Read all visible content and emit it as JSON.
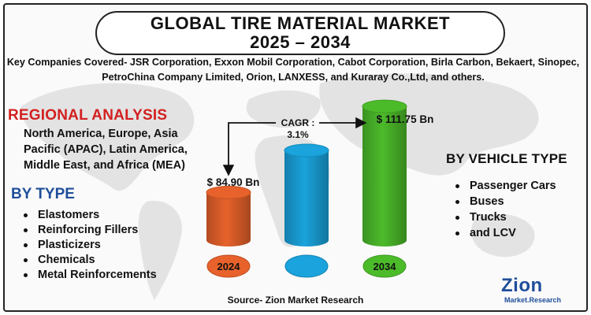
{
  "title": {
    "line1": "GLOBAL TIRE MATERIAL MARKET",
    "line2": "2025 – 2034"
  },
  "companies": {
    "text": "Key Companies Covered- JSR Corporation, Exxon Mobil Corporation, Cabot Corporation, Birla Carbon, Bekaert, Sinopec, PetroChina Company Limited, Orion, LANXESS, and Kuraray Co.,Ltd, and others."
  },
  "regional": {
    "heading": "REGIONAL ANALYSIS",
    "text": "North America, Europe, Asia Pacific (APAC), Latin America, Middle East, and Africa (MEA)"
  },
  "by_type": {
    "heading": "BY TYPE",
    "items": [
      "Elastomers",
      "Reinforcing Fillers",
      "Plasticizers",
      "Chemicals",
      "Metal Reinforcements"
    ]
  },
  "by_vehicle": {
    "heading": "BY VEHICLE TYPE",
    "items": [
      "Passenger Cars",
      "Buses",
      "Trucks",
      "and LCV"
    ]
  },
  "source": "Source- Zion Market Research",
  "logo": {
    "name": "Zion",
    "sub": "Market.Research"
  },
  "colors": {
    "bar_2024": "#e8622b",
    "bar_mid": "#1aa3dc",
    "bar_2034": "#4cbb2a",
    "regional_heading": "#d32020",
    "type_heading": "#1f4e9a",
    "logo": "#1f4e9a"
  },
  "chart_data": {
    "type": "bar",
    "categories": [
      "2024",
      "",
      "2034"
    ],
    "values": [
      84.9,
      98.0,
      111.75
    ],
    "data_labels": [
      "$ 84.90 Bn",
      "",
      "$ 111.75 Bn"
    ],
    "annotation": {
      "cagr_label": "CAGR :",
      "cagr_value": "3.1%"
    },
    "unit": "Bn"
  }
}
